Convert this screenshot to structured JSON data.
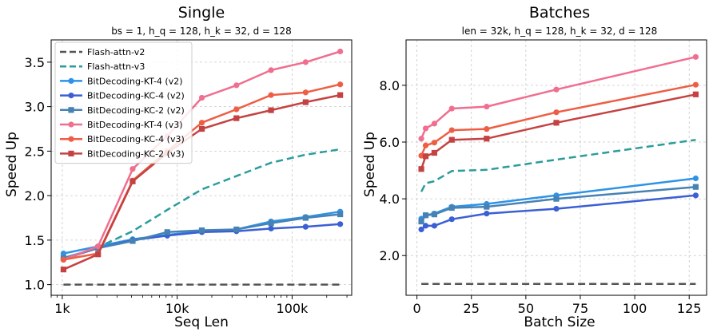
{
  "chart_data": [
    {
      "type": "line",
      "title": "Single",
      "subtitle": "bs = 1, h_q = 128, h_k = 32, d = 128",
      "xlabel": "Seq Len",
      "ylabel": "Speed Up",
      "xscale": "log",
      "xlim": [
        800,
        330000
      ],
      "ylim": [
        0.88,
        3.75
      ],
      "xticks": [
        1000,
        10000,
        100000
      ],
      "xtick_labels": [
        "1k",
        "10k",
        "100k"
      ],
      "yticks": [
        1.0,
        1.5,
        2.0,
        2.5,
        3.0,
        3.5
      ],
      "ytick_labels": [
        "1.0",
        "1.5",
        "2.0",
        "2.5",
        "3.0",
        "3.5"
      ],
      "grid": true,
      "legend_position": "top-left",
      "x": [
        1024,
        2048,
        4096,
        8192,
        16384,
        32768,
        65536,
        131072,
        262144
      ],
      "series": [
        {
          "name": "Flash-attn-v2",
          "color": "#555555",
          "dash": "dashed",
          "marker": "none",
          "values": [
            1.0,
            1.0,
            1.0,
            1.0,
            1.0,
            1.0,
            1.0,
            1.0,
            1.0
          ]
        },
        {
          "name": "Flash-attn-v3",
          "color": "#2a9d9b",
          "dash": "dashed",
          "marker": "none",
          "values": [
            1.28,
            1.42,
            1.6,
            1.84,
            2.07,
            2.22,
            2.37,
            2.46,
            2.52
          ]
        },
        {
          "name": "BitDecoding-KT-4 (v2)",
          "color": "#2e93e6",
          "dash": "solid",
          "marker": "circle",
          "values": [
            1.35,
            1.43,
            1.51,
            1.56,
            1.6,
            1.62,
            1.71,
            1.76,
            1.82
          ]
        },
        {
          "name": "BitDecoding-KC-4 (v2)",
          "color": "#3b5fd4",
          "dash": "solid",
          "marker": "circle",
          "values": [
            1.29,
            1.41,
            1.5,
            1.55,
            1.59,
            1.6,
            1.63,
            1.65,
            1.68
          ]
        },
        {
          "name": "BitDecoding-KC-2 (v2)",
          "color": "#4682b4",
          "dash": "solid",
          "marker": "square",
          "values": [
            1.3,
            1.41,
            1.49,
            1.59,
            1.61,
            1.62,
            1.69,
            1.75,
            1.79
          ]
        },
        {
          "name": "BitDecoding-KT-4 (v3)",
          "color": "#f06e8f",
          "dash": "solid",
          "marker": "circle",
          "values": [
            1.28,
            1.43,
            2.3,
            2.67,
            3.1,
            3.24,
            3.41,
            3.5,
            3.62
          ]
        },
        {
          "name": "BitDecoding-KC-4 (v3)",
          "color": "#ef5d44",
          "dash": "solid",
          "marker": "circle",
          "values": [
            1.28,
            1.35,
            2.17,
            2.5,
            2.82,
            2.97,
            3.13,
            3.16,
            3.25
          ]
        },
        {
          "name": "BitDecoding-KC-2 (v3)",
          "color": "#c54242",
          "dash": "solid",
          "marker": "square",
          "values": [
            1.17,
            1.34,
            2.16,
            2.48,
            2.75,
            2.87,
            2.96,
            3.05,
            3.13
          ]
        }
      ]
    },
    {
      "type": "line",
      "title": "Batches",
      "subtitle": "len = 32k, h_q = 128, h_k = 32, d = 128",
      "xlabel": "Batch Size",
      "ylabel": "Speed Up",
      "xscale": "linear",
      "xlim": [
        -5,
        133
      ],
      "ylim": [
        0.6,
        9.6
      ],
      "xticks": [
        0,
        25,
        50,
        75,
        100,
        125
      ],
      "xtick_labels": [
        "0",
        "25",
        "50",
        "75",
        "100",
        "125"
      ],
      "yticks": [
        2.0,
        4.0,
        6.0,
        8.0
      ],
      "ytick_labels": [
        "2.0",
        "4.0",
        "6.0",
        "8.0"
      ],
      "grid": true,
      "x": [
        2,
        4,
        8,
        16,
        32,
        64,
        128
      ],
      "series": [
        {
          "name": "Flash-attn-v2",
          "color": "#555555",
          "dash": "dashed",
          "marker": "none",
          "values": [
            1.0,
            1.0,
            1.0,
            1.0,
            1.0,
            1.0,
            1.0
          ]
        },
        {
          "name": "Flash-attn-v3",
          "color": "#2a9d9b",
          "dash": "dashed",
          "marker": "none",
          "values": [
            4.25,
            4.55,
            4.62,
            4.98,
            5.02,
            5.38,
            6.08
          ]
        },
        {
          "name": "BitDecoding-KT-4 (v2)",
          "color": "#2e93e6",
          "dash": "solid",
          "marker": "circle",
          "values": [
            3.3,
            3.42,
            3.48,
            3.72,
            3.82,
            4.12,
            4.72
          ]
        },
        {
          "name": "BitDecoding-KC-4 (v2)",
          "color": "#3b5fd4",
          "dash": "solid",
          "marker": "circle",
          "values": [
            2.92,
            3.05,
            3.05,
            3.28,
            3.48,
            3.65,
            4.12
          ]
        },
        {
          "name": "BitDecoding-KC-2 (v2)",
          "color": "#4682b4",
          "dash": "solid",
          "marker": "square",
          "values": [
            3.2,
            3.42,
            3.45,
            3.68,
            3.72,
            4.0,
            4.42
          ]
        },
        {
          "name": "BitDecoding-KT-4 (v3)",
          "color": "#f06e8f",
          "dash": "solid",
          "marker": "circle",
          "values": [
            6.12,
            6.48,
            6.65,
            7.18,
            7.25,
            7.85,
            9.0
          ]
        },
        {
          "name": "BitDecoding-KC-4 (v3)",
          "color": "#ef5d44",
          "dash": "solid",
          "marker": "circle",
          "values": [
            5.52,
            5.88,
            5.98,
            6.42,
            6.46,
            7.05,
            8.02
          ]
        },
        {
          "name": "BitDecoding-KC-2 (v3)",
          "color": "#c54242",
          "dash": "solid",
          "marker": "square",
          "values": [
            5.05,
            5.5,
            5.62,
            6.08,
            6.12,
            6.68,
            7.68
          ]
        }
      ]
    }
  ]
}
